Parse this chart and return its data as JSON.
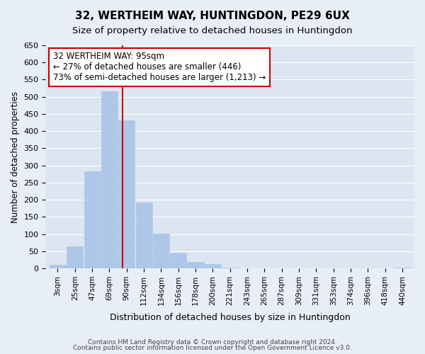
{
  "title1": "32, WERTHEIM WAY, HUNTINGDON, PE29 6UX",
  "title2": "Size of property relative to detached houses in Huntingdon",
  "xlabel": "Distribution of detached houses by size in Huntingdon",
  "ylabel": "Number of detached properties",
  "bin_labels": [
    "3sqm",
    "25sqm",
    "47sqm",
    "69sqm",
    "90sqm",
    "112sqm",
    "134sqm",
    "156sqm",
    "178sqm",
    "200sqm",
    "221sqm",
    "243sqm",
    "265sqm",
    "287sqm",
    "309sqm",
    "331sqm",
    "353sqm",
    "374sqm",
    "396sqm",
    "418sqm",
    "440sqm"
  ],
  "bar_values": [
    10,
    65,
    283,
    515,
    432,
    192,
    102,
    46,
    19,
    12,
    2,
    0,
    0,
    0,
    0,
    0,
    0,
    0,
    0,
    0,
    2
  ],
  "bar_color": "#aec6e8",
  "vline_x": 3.78,
  "vline_color": "#cc0000",
  "ylim": [
    0,
    650
  ],
  "yticks": [
    0,
    50,
    100,
    150,
    200,
    250,
    300,
    350,
    400,
    450,
    500,
    550,
    600,
    650
  ],
  "annotation_title": "32 WERTHEIM WAY: 95sqm",
  "annotation_line1": "← 27% of detached houses are smaller (446)",
  "annotation_line2": "73% of semi-detached houses are larger (1,213) →",
  "annotation_box_color": "#ffffff",
  "annotation_box_edge": "#cc0000",
  "footer1": "Contains HM Land Registry data © Crown copyright and database right 2024.",
  "footer2": "Contains public sector information licensed under the Open Government Licence v3.0.",
  "bg_color": "#e8eef5",
  "plot_bg_color": "#dce6f0"
}
